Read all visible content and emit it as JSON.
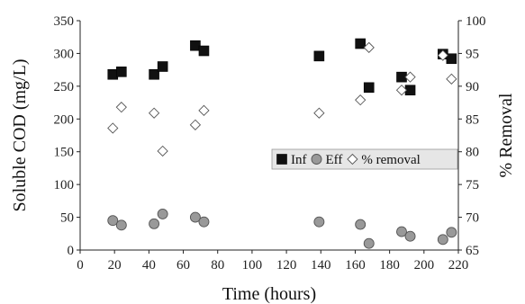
{
  "chart_data": {
    "type": "scatter",
    "xlabel": "Time (hours)",
    "ylabel": "Soluble COD (mg/L)",
    "y2label": "% Removal",
    "xlim": [
      0,
      220
    ],
    "ylim": [
      0,
      350
    ],
    "y2lim": [
      65,
      100
    ],
    "xticks": [
      "0",
      "20",
      "40",
      "60",
      "80",
      "100",
      "120",
      "140",
      "160",
      "180",
      "200",
      "220"
    ],
    "yticks": [
      "0",
      "50",
      "100",
      "150",
      "200",
      "250",
      "300",
      "350"
    ],
    "y2ticks": [
      "65",
      "70",
      "75",
      "80",
      "85",
      "90",
      "95",
      "100"
    ],
    "grid": false,
    "legend_position": "center-right",
    "series": [
      {
        "name": "Inf",
        "axis": "left",
        "marker": "square",
        "color": "#111111",
        "x": [
          19,
          24,
          43,
          48,
          67,
          72,
          139,
          163,
          168,
          187,
          192,
          211,
          216
        ],
        "y": [
          268,
          272,
          268,
          280,
          312,
          304,
          296,
          315,
          248,
          264,
          244,
          299,
          292
        ]
      },
      {
        "name": "Eff",
        "axis": "left",
        "marker": "circle",
        "color": "#999999",
        "x": [
          19,
          24,
          43,
          48,
          67,
          72,
          139,
          163,
          168,
          187,
          192,
          211,
          216
        ],
        "y": [
          45,
          38,
          40,
          55,
          50,
          43,
          43,
          39,
          10,
          28,
          21,
          16,
          27
        ]
      },
      {
        "name": "% removal",
        "axis": "right",
        "marker": "diamond",
        "color": "#ffffff",
        "x": [
          19,
          24,
          43,
          48,
          67,
          72,
          139,
          163,
          168,
          187,
          192,
          211,
          216
        ],
        "y": [
          83.6,
          86.8,
          85.9,
          80.1,
          84.1,
          86.3,
          85.9,
          87.9,
          95.9,
          89.4,
          91.4,
          94.7,
          91.1
        ]
      }
    ]
  }
}
